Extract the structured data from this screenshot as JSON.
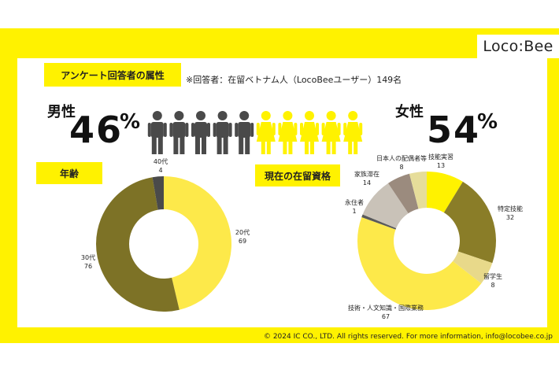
{
  "brand": {
    "logo": "Loco:Bee"
  },
  "header": {
    "survey_tag": "アンケート回答者の属性",
    "note": "※回答者：在留ベトナム人（LocoBeeユーザー）149名"
  },
  "gender": {
    "male_label": "男性",
    "male_value": "46",
    "male_unit": "%",
    "female_label": "女性",
    "female_value": "54",
    "female_unit": "%",
    "icons": {
      "male_count": 5,
      "female_count": 5,
      "male_color": "#4a4a4a",
      "female_color": "#fff200"
    }
  },
  "age_section": {
    "tag": "年齢"
  },
  "status_section": {
    "tag": "現在の在留資格"
  },
  "colors": {
    "frame": "#fff200",
    "dark_olive": "#7d7226",
    "yellow": "#fff200",
    "dark_gray": "#4a4a4a"
  },
  "chart_data": [
    {
      "type": "pie",
      "title": "年齢",
      "donut": true,
      "slices": [
        {
          "label": "20代",
          "value": 69,
          "color": "#fde94a"
        },
        {
          "label": "30代",
          "value": 76,
          "color": "#7d7226"
        },
        {
          "label": "40代",
          "value": 4,
          "color": "#4a4a4a"
        }
      ]
    },
    {
      "type": "pie",
      "title": "現在の在留資格",
      "donut": true,
      "slices": [
        {
          "label": "技能実習",
          "value": 13,
          "color": "#fff200"
        },
        {
          "label": "特定技能",
          "value": 32,
          "color": "#8a7d28"
        },
        {
          "label": "留学生",
          "value": 8,
          "color": "#e8d98a"
        },
        {
          "label": "技術・人文知識・国際業務",
          "value": 67,
          "color": "#fde94a"
        },
        {
          "label": "永住者",
          "value": 1,
          "color": "#5a5a5a"
        },
        {
          "label": "家族滞在",
          "value": 14,
          "color": "#c9c2b8"
        },
        {
          "label": "日本人の配偶者等",
          "value": 8,
          "color": "#9b8b7e"
        },
        {
          "label": "",
          "value": 6,
          "color": "#e6dd9a"
        }
      ]
    }
  ],
  "footer": {
    "copyright": "© 2024 IC CO., LTD. All rights reserved. For more information, info@locobee.co.jp"
  }
}
